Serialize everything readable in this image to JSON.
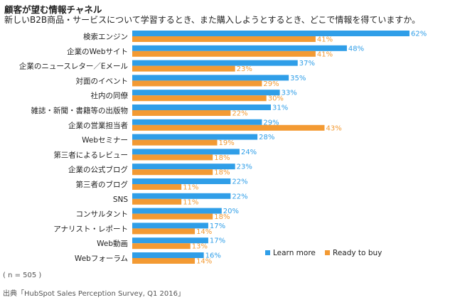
{
  "header": {
    "title": "顧客が望む情報チャネル",
    "subtitle": "新しいB2B商品・サービスについて学習するとき、また購入しようとするとき、どこで情報を得ていますか。"
  },
  "footer": {
    "note": "( n = 505 )",
    "source": "出典「HubSpot Sales Perception Survey, Q1 2016」"
  },
  "colors": {
    "learn_more": "#2f9ee8",
    "ready_to_buy": "#f39a33"
  },
  "chart_data": {
    "type": "bar",
    "orientation": "horizontal",
    "categories": [
      "検索エンジン",
      "企業のWebサイト",
      "企業のニュースレター／Eメール",
      "対面のイベント",
      "社内の同僚",
      "雑誌・新聞・書籍等の出版物",
      "企業の営業担当者",
      "Webセミナー",
      "第三者によるレビュー",
      "企業の公式ブログ",
      "第三者のブログ",
      "SNS",
      "コンサルタント",
      "アナリスト・レポート",
      "Web動画",
      "Webフォーラム"
    ],
    "series": [
      {
        "name": "Learn more",
        "values": [
          62,
          48,
          37,
          35,
          33,
          31,
          29,
          28,
          24,
          23,
          22,
          22,
          20,
          17,
          17,
          16
        ]
      },
      {
        "name": "Ready to buy",
        "values": [
          41,
          41,
          23,
          29,
          30,
          22,
          43,
          19,
          18,
          18,
          11,
          11,
          18,
          14,
          13,
          14
        ]
      }
    ],
    "value_suffix": "%",
    "xlim": [
      0,
      62
    ],
    "grid": false,
    "legend_position": "bottom-right"
  }
}
